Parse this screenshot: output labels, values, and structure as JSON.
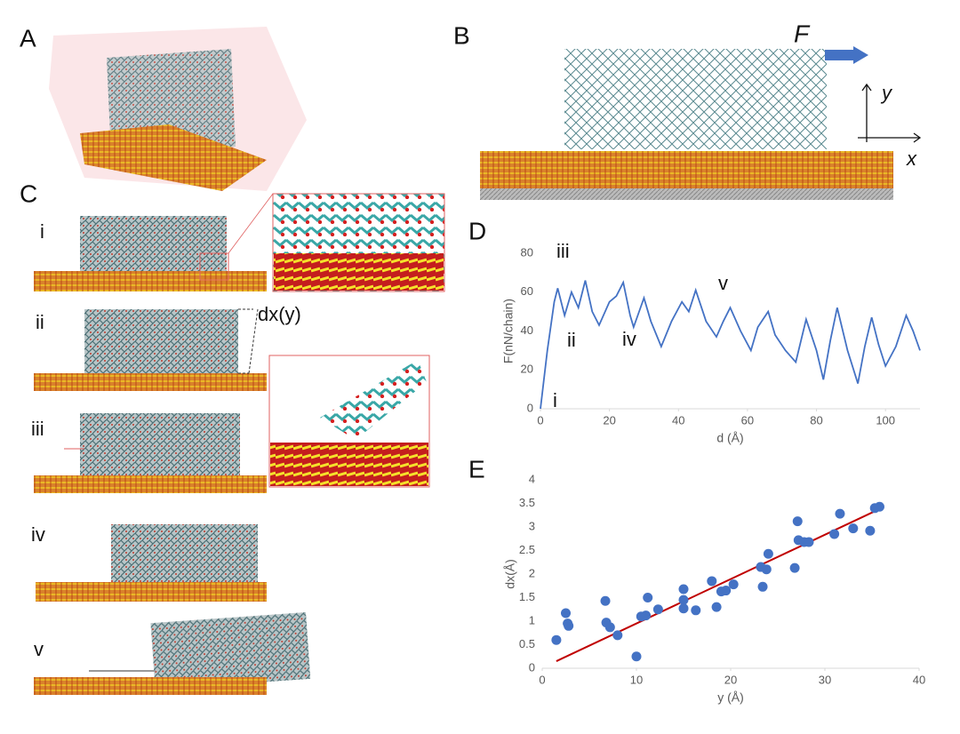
{
  "panel_labels": [
    "A",
    "B",
    "C",
    "D",
    "E"
  ],
  "panel_b": {
    "force_label": "F",
    "axis_x": "x",
    "axis_y": "y"
  },
  "panel_c": {
    "stages": [
      "i",
      "ii",
      "iii",
      "iv",
      "v"
    ],
    "displacement_label": "dx(y)"
  },
  "chart_data": [
    {
      "type": "line",
      "x_label": "d (Å)",
      "y_label": "F(nN/chain)",
      "color": "#4472c4",
      "x": [
        0,
        2,
        4,
        5,
        7,
        9,
        11,
        13,
        15,
        17,
        20,
        22,
        24,
        26,
        27,
        29,
        30,
        32,
        35,
        38,
        41,
        43,
        45,
        48,
        51,
        53,
        55,
        58,
        61,
        63,
        66,
        68,
        71,
        74,
        77,
        80,
        82,
        84,
        86,
        89,
        92,
        94,
        96,
        98,
        100,
        103,
        106,
        108,
        110
      ],
      "values": [
        0,
        30,
        55,
        62,
        48,
        60,
        52,
        66,
        50,
        43,
        55,
        58,
        65,
        48,
        42,
        52,
        57,
        45,
        32,
        45,
        55,
        50,
        61,
        45,
        37,
        45,
        52,
        40,
        30,
        42,
        50,
        38,
        30,
        24,
        46,
        30,
        15,
        35,
        52,
        30,
        13,
        32,
        47,
        33,
        22,
        32,
        48,
        40,
        30
      ],
      "xlim": [
        0,
        110
      ],
      "xticks": [
        0,
        20,
        40,
        60,
        80,
        100
      ],
      "ylim": [
        0,
        80
      ],
      "yticks": [
        0,
        20,
        40,
        60,
        80
      ],
      "annotations": [
        "iii",
        "ii",
        "i",
        "iv",
        "v"
      ]
    },
    {
      "type": "scatter",
      "x_label": "y (Å)",
      "y_label": "dx(Å)",
      "color": "#4472c4",
      "x": [
        1.5,
        2.5,
        2.7,
        2.8,
        6.7,
        6.8,
        7.2,
        8,
        10,
        10.5,
        11,
        11.2,
        12.3,
        15,
        15,
        15,
        16.3,
        18,
        18.5,
        19,
        19.5,
        20.3,
        23.2,
        23.4,
        23.8,
        24,
        26.8,
        27.1,
        27.2,
        27.8,
        28.3,
        31,
        31.6,
        33,
        34.8,
        35.3,
        35.8
      ],
      "values": [
        0.6,
        1.17,
        0.95,
        0.9,
        1.43,
        0.97,
        0.87,
        0.7,
        0.25,
        1.1,
        1.12,
        1.5,
        1.25,
        1.68,
        1.45,
        1.27,
        1.23,
        1.85,
        1.3,
        1.63,
        1.65,
        1.78,
        2.15,
        1.73,
        2.1,
        2.43,
        2.13,
        3.12,
        2.72,
        2.68,
        2.68,
        2.85,
        3.28,
        2.97,
        2.92,
        3.4,
        3.43
      ],
      "trendline": {
        "x": [
          1.5,
          36
        ],
        "values": [
          0.15,
          3.4
        ],
        "color": "#c00000"
      },
      "xlim": [
        0,
        40
      ],
      "xticks": [
        0,
        10,
        20,
        30,
        40
      ],
      "ylim": [
        0,
        4
      ],
      "yticks": [
        0,
        0.5,
        1,
        1.5,
        2,
        2.5,
        3,
        3.5,
        4
      ]
    }
  ]
}
